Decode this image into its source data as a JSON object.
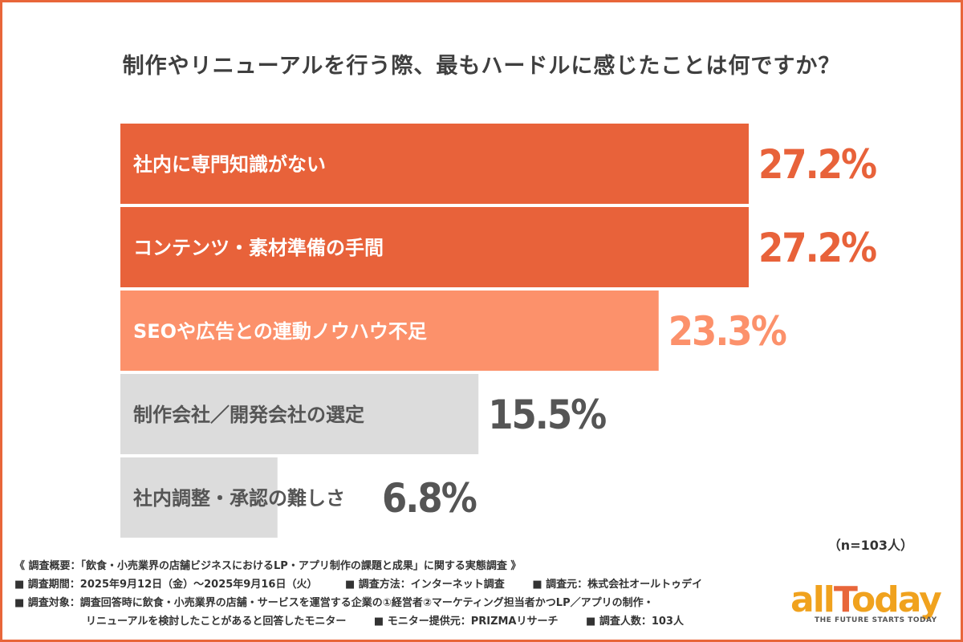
{
  "title": "制作やリニューアルを行う際、最もハードルに感じたことは何ですか？",
  "n_label": "（n=103人）",
  "chart_data": {
    "type": "bar",
    "orientation": "horizontal",
    "categories": [
      "社内に専門知識がない",
      "コンテンツ・素材準備の手間",
      "SEOや広告との連動ノウハウ不足",
      "制作会社／開発会社の選定",
      "社内調整・承認の難しさ"
    ],
    "values": [
      27.2,
      27.2,
      23.3,
      15.5,
      6.8
    ],
    "value_labels": [
      "27.2%",
      "27.2%",
      "23.3%",
      "15.5%",
      "6.8%"
    ],
    "bar_colors": [
      "#e8623a",
      "#e8623a",
      "#fc916b",
      "#dcdcdc",
      "#dcdcdc"
    ],
    "label_colors": [
      "#ffffff",
      "#ffffff",
      "#ffffff",
      "#555555",
      "#555555"
    ],
    "value_colors": [
      "#e8623a",
      "#e8623a",
      "#fc916b",
      "#555555",
      "#555555"
    ],
    "xlim": [
      0,
      27.2
    ]
  },
  "notes": {
    "line1": "《 調査概要：「飲食・小売業界の店舗ビジネスにおけるLP・アプリ制作の課題と成果」に関する実態調査 》",
    "period": "■ 調査期間：2025年9月12日（金）〜2025年9月16日（火）",
    "method": "■ 調査方法：インターネット調査",
    "org": "■ 調査元：株式会社オールトゥデイ",
    "target": "■ 調査対象：調査回答時に飲食・小売業界の店舗・サービスを運営する企業の①経営者②マーケティング担当者かつLP／アプリの制作・",
    "target_cont": "リニューアルを検討したことがあると回答したモニター",
    "provider": "■ モニター提供元：PRIZMAリサーチ",
    "count": "■ 調査人数：103人"
  },
  "logo": {
    "word_a": "all",
    "word_b": "T",
    "word_c": "oday",
    "tagline": "THE FUTURE STARTS TODAY"
  }
}
